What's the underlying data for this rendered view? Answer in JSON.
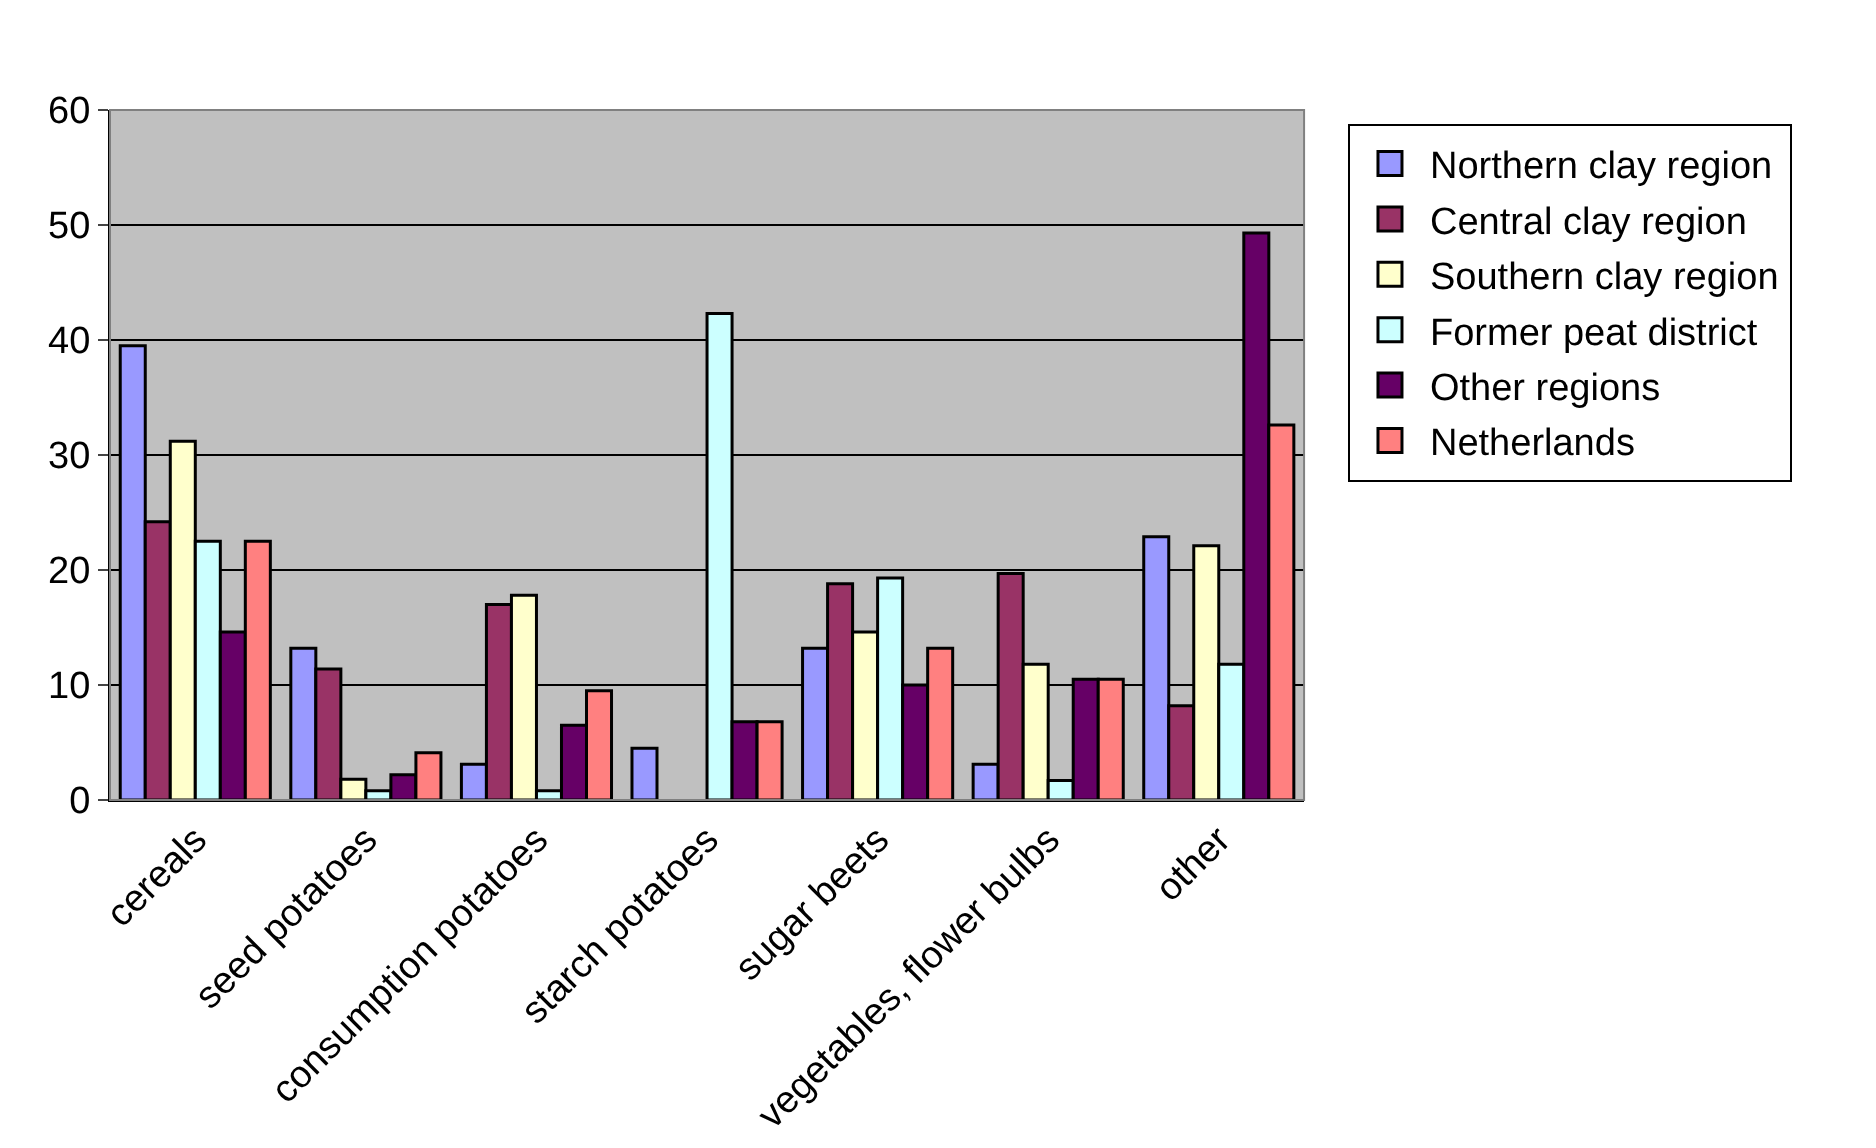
{
  "chart_data": {
    "type": "bar",
    "categories": [
      "cereals",
      "seed potatoes",
      "consumption potatoes",
      "starch potatoes",
      "sugar beets",
      "vegetables, flower bulbs",
      "other"
    ],
    "series": [
      {
        "name": "Northern clay region",
        "color": "#9999ff",
        "values": [
          39.5,
          13.2,
          3.1,
          4.5,
          13.2,
          3.1,
          22.9
        ]
      },
      {
        "name": "Central clay region",
        "color": "#993366",
        "values": [
          24.2,
          11.4,
          17,
          null,
          18.8,
          19.7,
          8.2
        ]
      },
      {
        "name": "Southern clay region",
        "color": "#ffffcc",
        "values": [
          31.2,
          1.8,
          17.8,
          null,
          14.6,
          11.8,
          22.1
        ]
      },
      {
        "name": "Former peat district",
        "color": "#ccffff",
        "values": [
          22.5,
          0.8,
          0.8,
          42.3,
          19.3,
          1.7,
          11.8
        ]
      },
      {
        "name": "Other regions",
        "color": "#660066",
        "values": [
          14.6,
          2.2,
          6.5,
          6.8,
          10,
          10.5,
          49.3
        ]
      },
      {
        "name": "Netherlands",
        "color": "#ff8080",
        "values": [
          22.5,
          4.1,
          9.5,
          6.8,
          13.2,
          10.5,
          32.6
        ]
      }
    ],
    "ylim": [
      0,
      60
    ],
    "yticks": [
      0,
      10,
      20,
      30,
      40,
      50,
      60
    ],
    "grid": "y",
    "legend": "right"
  }
}
